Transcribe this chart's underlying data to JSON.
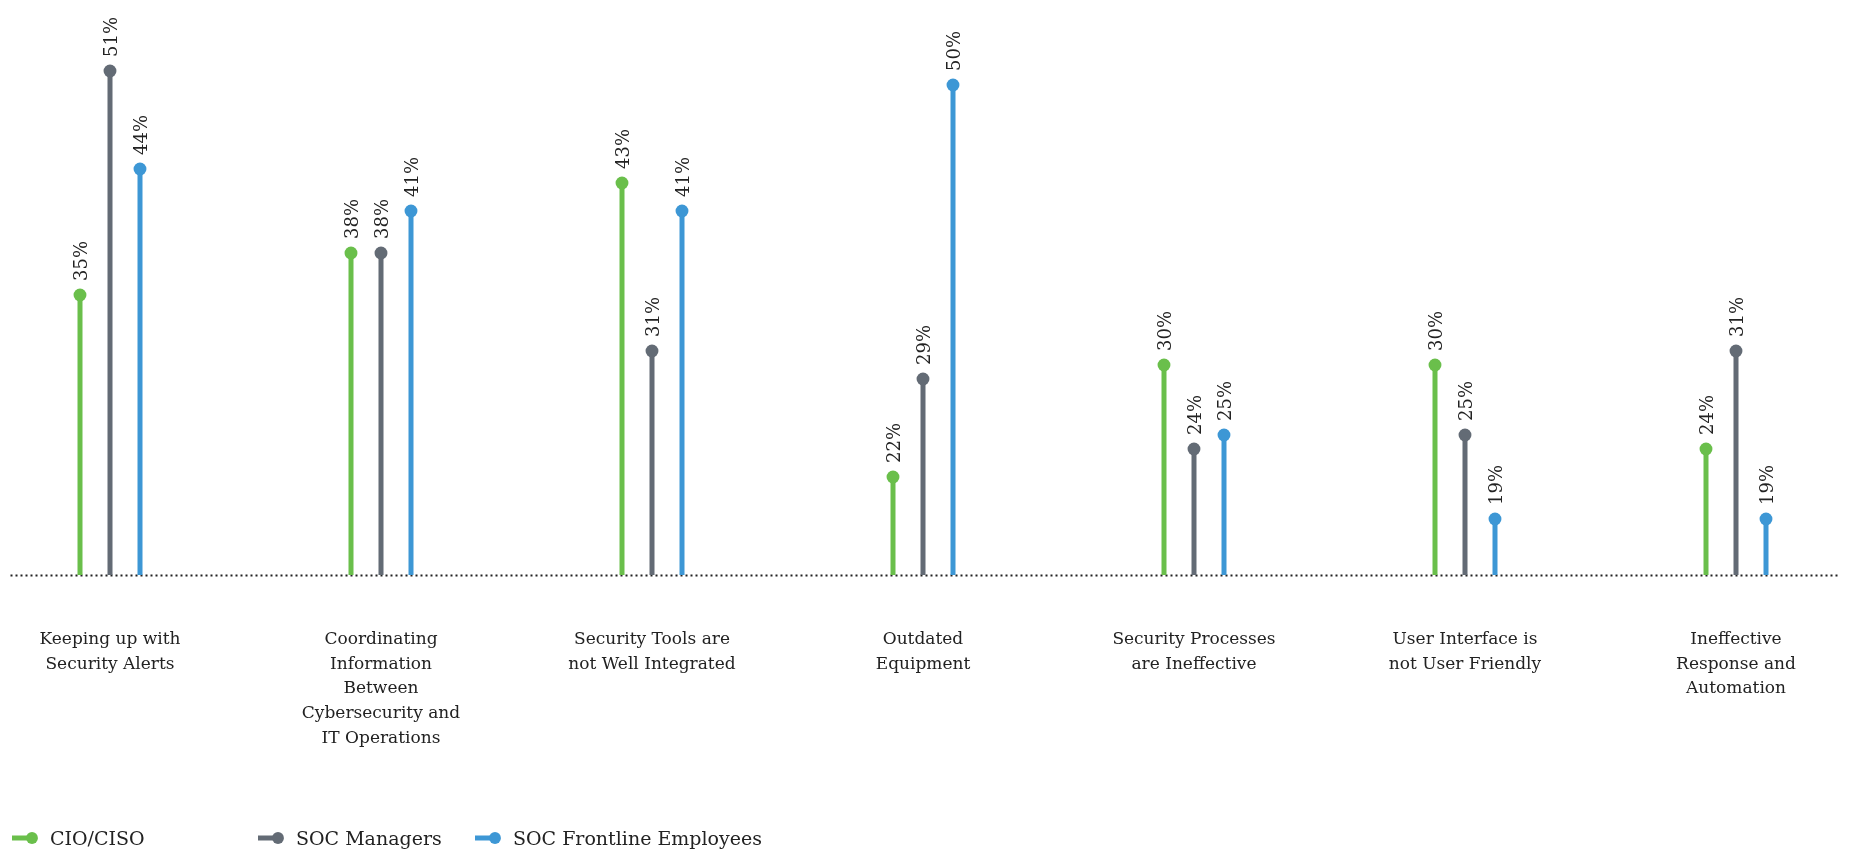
{
  "chart_data": {
    "type": "lollipop",
    "categories": [
      "Keeping up with Security Alerts",
      "Coordinating Information Between Cybersecurity and IT Operations",
      "Security Tools are not Well Integrated",
      "Outdated Equipment",
      "Security Processes are Ineffective",
      "User Interface is not User Friendly",
      "Ineffective Response and Automation"
    ],
    "series": [
      {
        "name": "CIO/CISO",
        "color": "#6abf4b",
        "values": [
          35,
          38,
          43,
          22,
          30,
          30,
          24
        ],
        "value_labels": [
          "35%",
          "38%",
          "43%",
          "22%",
          "30%",
          "30%",
          "24%"
        ]
      },
      {
        "name": "SOC Managers",
        "color": "#636b75",
        "values": [
          51,
          38,
          31,
          29,
          24,
          25,
          31
        ],
        "value_labels": [
          "51%",
          "38%",
          "31%",
          "29%",
          "24%",
          "25%",
          "31%"
        ]
      },
      {
        "name": "SOC Frontline Employees",
        "color": "#3d97d5",
        "values": [
          44,
          41,
          41,
          50,
          25,
          19,
          19
        ],
        "value_labels": [
          "44%",
          "41%",
          "41%",
          "50%",
          "25%",
          "19%",
          "19%"
        ]
      }
    ],
    "ylim": [
      15,
      51
    ],
    "marker": "circle",
    "legend": "bottom left"
  }
}
